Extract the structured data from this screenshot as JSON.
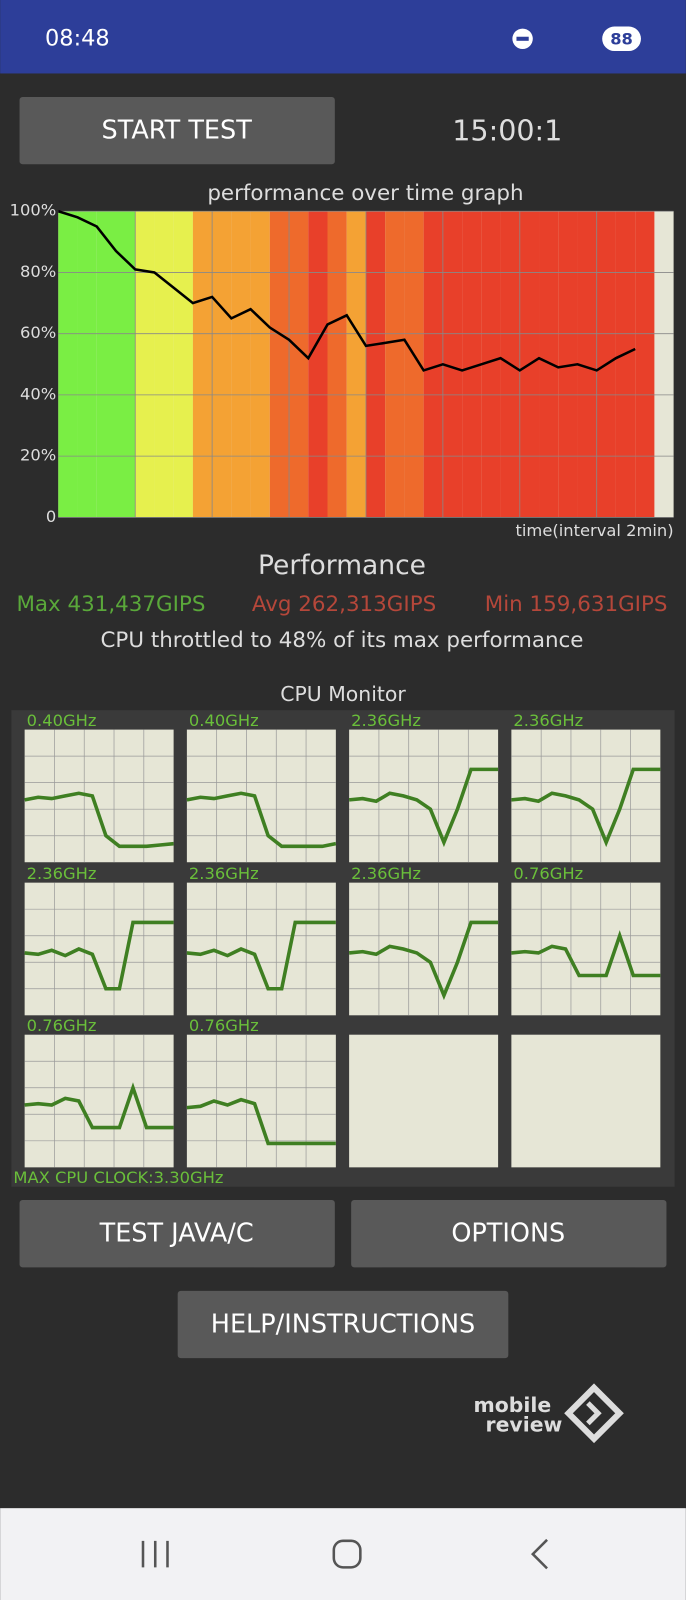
{
  "status_bar": {
    "time": "08:48",
    "battery": "88"
  },
  "header": {
    "button": "START TEST",
    "timer": "15:00:1"
  },
  "chart_data": {
    "type": "line",
    "title": "performance over time graph",
    "x_label": "time(interval 2min)",
    "xlim": [
      0,
      16
    ],
    "ylim": [
      0,
      100
    ],
    "yticks": [
      0,
      {
        "value": 20,
        "label": "20%"
      },
      {
        "value": 40,
        "label": "40%"
      },
      {
        "value": 60,
        "label": "60%"
      },
      {
        "value": 80,
        "label": "80%"
      },
      {
        "value": 100,
        "label": "100%"
      }
    ],
    "grid": true,
    "series": [
      {
        "color": "#000000",
        "x": [
          0,
          0.5,
          1,
          1.5,
          2,
          2.5,
          3,
          3.5,
          4,
          4.5,
          5,
          5.5,
          6,
          6.5,
          7,
          7.5,
          8,
          8.5,
          9,
          9.5,
          10,
          10.5,
          11,
          11.5,
          12,
          12.5,
          13,
          13.5,
          14,
          14.5,
          15
        ],
        "values": [
          100,
          98,
          95,
          87,
          81,
          80,
          75,
          70,
          72,
          65,
          68,
          62,
          58,
          52,
          63,
          66,
          56,
          57,
          58,
          48,
          50,
          48,
          50,
          52,
          48,
          52,
          49,
          50,
          48,
          52,
          55
        ]
      }
    ]
  },
  "performance": {
    "title": "Performance",
    "max": "Max 431,437GIPS",
    "avg": "Avg 262,313GIPS",
    "min": "Min 159,631GIPS",
    "note": "CPU throttled to 48% of its max performance"
  },
  "cpu_monitor": {
    "title": "CPU Monitor",
    "ylim": [
      0,
      100
    ],
    "color": "#3f7f22",
    "cores": [
      {
        "label": "0.40GHz",
        "values": [
          47,
          49,
          48,
          50,
          52,
          50,
          20,
          12,
          12,
          12,
          13,
          14
        ]
      },
      {
        "label": "0.40GHz",
        "values": [
          47,
          49,
          48,
          50,
          52,
          50,
          20,
          12,
          12,
          12,
          12,
          14
        ]
      },
      {
        "label": "2.36GHz",
        "values": [
          47,
          48,
          46,
          52,
          50,
          47,
          40,
          15,
          40,
          70,
          70,
          70
        ]
      },
      {
        "label": "2.36GHz",
        "values": [
          47,
          48,
          46,
          52,
          50,
          47,
          40,
          15,
          40,
          70,
          70,
          70
        ]
      },
      {
        "label": "2.36GHz",
        "values": [
          47,
          46,
          49,
          45,
          50,
          46,
          20,
          20,
          70,
          70,
          70,
          70
        ]
      },
      {
        "label": "2.36GHz",
        "values": [
          47,
          46,
          49,
          45,
          50,
          46,
          20,
          20,
          70,
          70,
          70,
          70
        ]
      },
      {
        "label": "2.36GHz",
        "values": [
          47,
          48,
          46,
          52,
          50,
          47,
          40,
          15,
          40,
          70,
          70,
          70
        ]
      },
      {
        "label": "0.76GHz",
        "values": [
          47,
          48,
          47,
          52,
          50,
          30,
          30,
          30,
          60,
          30,
          30,
          30
        ]
      },
      {
        "label": "0.76GHz",
        "values": [
          47,
          48,
          47,
          52,
          50,
          30,
          30,
          30,
          60,
          30,
          30,
          30
        ]
      },
      {
        "label": "0.76GHz",
        "values": [
          45,
          46,
          50,
          47,
          51,
          48,
          18,
          18,
          18,
          18,
          18,
          18
        ]
      }
    ],
    "max_clock": "MAX CPU CLOCK:3.30GHz"
  },
  "buttons": {
    "test": "TEST JAVA/C",
    "options": "OPTIONS",
    "help": "HELP/INSTRUCTIONS"
  },
  "watermark": {
    "line1": "mobile",
    "line2": "review"
  }
}
